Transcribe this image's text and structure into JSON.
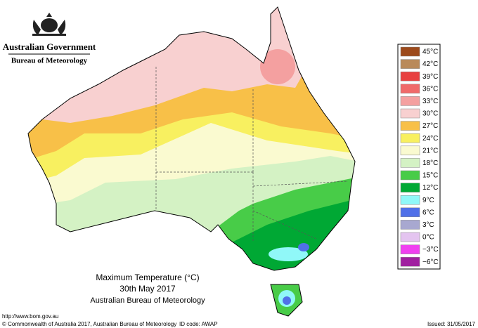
{
  "header": {
    "agency": "Australian Government",
    "bureau": "Bureau of Meteorology"
  },
  "map": {
    "title": "Maximum Temperature (°C)",
    "date": "30th May 2017",
    "source": "Australian Bureau of Meteorology"
  },
  "legend": [
    {
      "label": "45°C",
      "color": "#9c4a1c"
    },
    {
      "label": "42°C",
      "color": "#b98a5a"
    },
    {
      "label": "39°C",
      "color": "#e84040"
    },
    {
      "label": "36°C",
      "color": "#f06a6a"
    },
    {
      "label": "33°C",
      "color": "#f4a0a0"
    },
    {
      "label": "30°C",
      "color": "#f8d0d0"
    },
    {
      "label": "27°C",
      "color": "#f8c048"
    },
    {
      "label": "24°C",
      "color": "#f8f060"
    },
    {
      "label": "21°C",
      "color": "#fafad0"
    },
    {
      "label": "18°C",
      "color": "#d4f2c4"
    },
    {
      "label": "15°C",
      "color": "#48cc48"
    },
    {
      "label": "12°C",
      "color": "#00a834"
    },
    {
      "label": "9°C",
      "color": "#90f8f8"
    },
    {
      "label": "6°C",
      "color": "#5070e8"
    },
    {
      "label": "3°C",
      "color": "#a8a8d0"
    },
    {
      "label": "0°C",
      "color": "#e4c4f0"
    },
    {
      "label": "−3°C",
      "color": "#f040f0"
    },
    {
      "label": "−6°C",
      "color": "#a020a0"
    }
  ],
  "footer": {
    "url": "http://www.bom.gov.au",
    "copyright": "© Commonwealth of Australia 2017, Australian Bureau of Meteorology",
    "id_code": "ID code: AWAP",
    "issued": "Issued: 31/05/2017"
  }
}
